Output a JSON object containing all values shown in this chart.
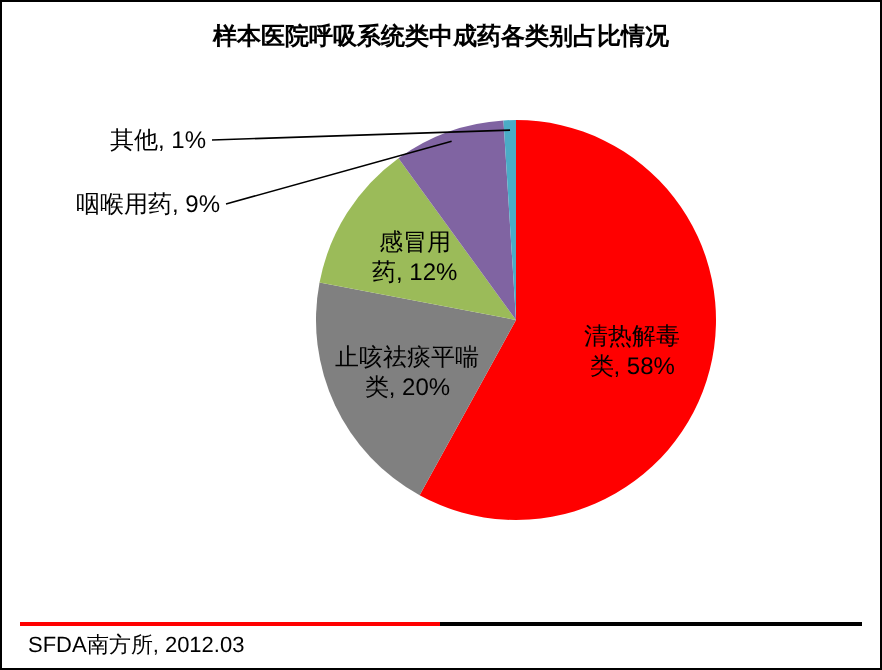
{
  "chart_data": {
    "type": "pie",
    "title": "样本医院呼吸系统类中成药各类别占比情况",
    "categories": [
      "清热解毒类",
      "止咳祛痰平喘类",
      "感冒用药",
      "咽喉用药",
      "其他"
    ],
    "values": [
      58,
      20,
      12,
      9,
      1
    ],
    "value_labels": [
      "58%",
      "20%",
      "12%",
      "9%",
      "1%"
    ],
    "colors": [
      "#ff0000",
      "#808080",
      "#9bbb59",
      "#8064a2",
      "#4bacc6"
    ],
    "legend": false,
    "annotations": [
      "SFDA南方所, 2012.03"
    ]
  }
}
